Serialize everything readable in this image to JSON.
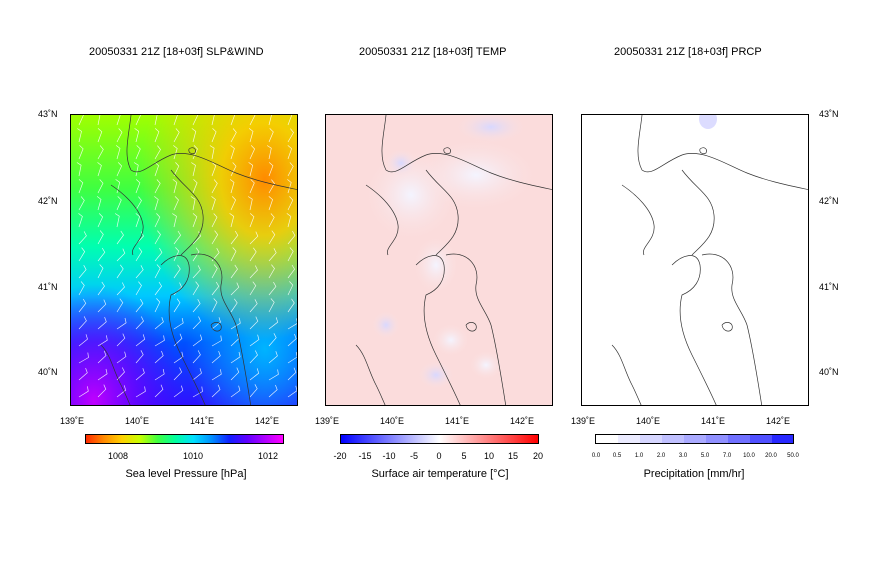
{
  "panels": [
    {
      "title": "20050331 21Z [18+03f] SLP&WIND",
      "colorbar_label": "Sea level Pressure [hPa]",
      "colorbar_ticks": [
        "1008",
        "1010",
        "1012"
      ]
    },
    {
      "title": "20050331 21Z [18+03f] TEMP",
      "colorbar_label": "Surface air temperature [°C]",
      "colorbar_ticks": [
        "-20",
        "-15",
        "-10",
        "-5",
        "0",
        "5",
        "10",
        "15",
        "20"
      ]
    },
    {
      "title": "20050331 21Z [18+03f] PRCP",
      "colorbar_label": "Precipitation [mm/hr]",
      "colorbar_ticks": [
        "0.0",
        "0.5",
        "1.0",
        "2.0",
        "3.0",
        "5.0",
        "7.0",
        "10.0",
        "20.0",
        "50.0"
      ]
    }
  ],
  "lat_labels": [
    "43˚N",
    "42˚N",
    "41˚N",
    "40˚N"
  ],
  "lon_labels": [
    "139˚E",
    "140˚E",
    "141˚E",
    "142˚E"
  ],
  "colors": {
    "slp_scale": [
      "#ff2a00",
      "#ffb400",
      "#c8ff00",
      "#00ff60",
      "#00ffd2",
      "#0090ff",
      "#1020ff",
      "#9000ff",
      "#ff00ff"
    ],
    "temp_scale": [
      "#0000ff",
      "#ffffff",
      "#ff0000"
    ],
    "prcp_scale": [
      "#ffffff",
      "#0000ff"
    ],
    "coastline": "#333333",
    "wind_barbs": "#ffffff"
  },
  "map": {
    "lat_range": [
      39.6,
      43.0
    ],
    "lon_range": [
      139.0,
      142.5
    ]
  }
}
